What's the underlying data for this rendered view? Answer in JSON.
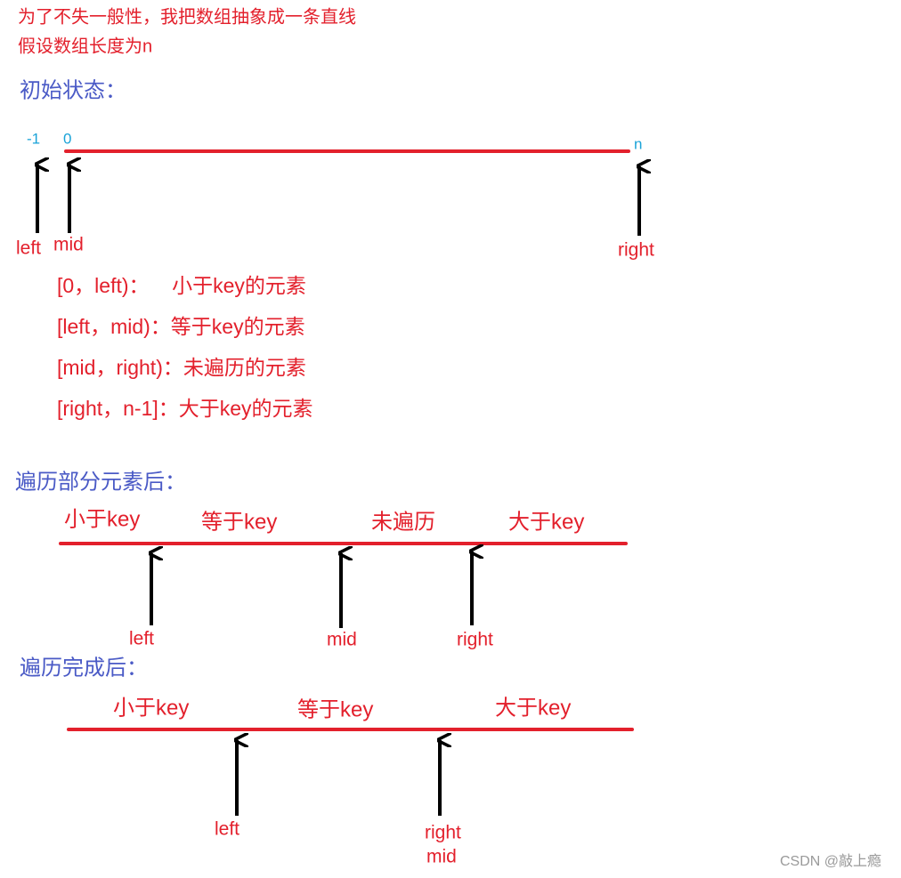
{
  "intro": [
    "为了不失一般性，我把数组抽象成一条直线",
    "假设数组长度为n"
  ],
  "initial": {
    "heading": "初始状态：",
    "index_labels": [
      "-1",
      "0",
      "n"
    ],
    "pointers": [
      "left",
      "mid",
      "right"
    ],
    "descriptions": [
      "[0，left)：    小于key的元素",
      "[left，mid)：等于key的元素",
      "[mid，right)：未遍历的元素",
      "[right，n-1]：大于key的元素"
    ]
  },
  "partial": {
    "heading": "遍历部分元素后：",
    "segments": [
      "小于key",
      "等于key",
      "未遍历",
      "大于key"
    ],
    "pointers": [
      "left",
      "mid",
      "right"
    ]
  },
  "finished": {
    "heading": "遍历完成后：",
    "segments": [
      "小于key",
      "等于key",
      "大于key"
    ],
    "pointers": [
      "left",
      "right",
      "mid"
    ]
  },
  "watermark": "CSDN @敲上瘾"
}
